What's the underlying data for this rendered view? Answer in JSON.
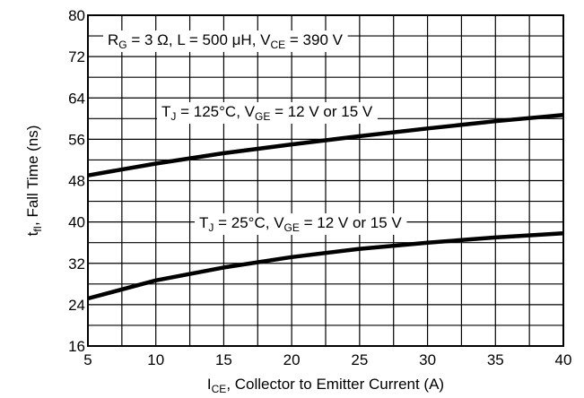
{
  "chart_data": {
    "type": "line",
    "title": "",
    "xlabel": {
      "main": "I",
      "sub": "CE",
      "rest": ", Collector to Emitter Current (A)"
    },
    "ylabel": {
      "main": "t",
      "sub": "fI",
      "rest": ", Fall Time (ns)"
    },
    "xlim": [
      5,
      40
    ],
    "ylim": [
      16,
      80
    ],
    "xticks": [
      5,
      10,
      15,
      20,
      25,
      30,
      35,
      40
    ],
    "yticks": [
      16,
      24,
      32,
      40,
      48,
      56,
      64,
      72,
      80
    ],
    "grid": true,
    "legend": "none",
    "series": [
      {
        "x": [
          5,
          10,
          15,
          20,
          25,
          30,
          35,
          40
        ],
        "values": [
          49,
          51.3,
          53.3,
          55.0,
          56.6,
          58.1,
          59.5,
          60.7
        ]
      },
      {
        "x": [
          5,
          10,
          15,
          20,
          25,
          30,
          35,
          40
        ],
        "values": [
          25.2,
          28.7,
          31.2,
          33.2,
          34.8,
          36.0,
          37.0,
          37.8
        ]
      }
    ],
    "annotations": {
      "conditions": [
        {
          "t": "R",
          "s": "G"
        },
        {
          "t": " = 3 Ω, L = 500 μH, V"
        },
        {
          "t": "",
          "s": "CE"
        },
        {
          "t": " = 390 V"
        }
      ],
      "hot": [
        {
          "t": "T",
          "s": "J"
        },
        {
          "t": " = 125°C, V"
        },
        {
          "t": "",
          "s": "GE"
        },
        {
          "t": " = 12 V or 15 V"
        }
      ],
      "cold": [
        {
          "t": "T",
          "s": "J"
        },
        {
          "t": " = 25°C, V"
        },
        {
          "t": "",
          "s": "GE"
        },
        {
          "t": " = 12 V or 15 V"
        }
      ]
    }
  }
}
